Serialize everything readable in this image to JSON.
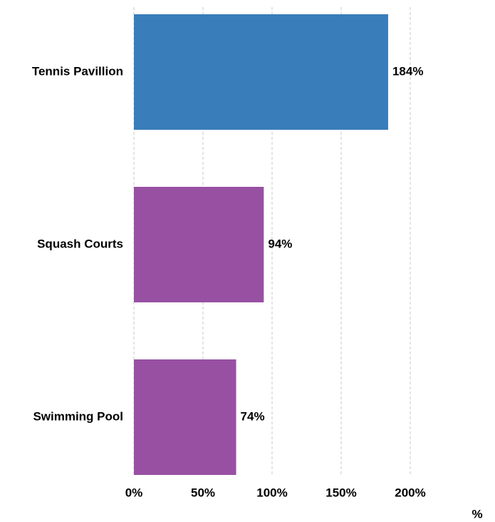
{
  "chart_data": {
    "type": "bar",
    "orientation": "horizontal",
    "categories": [
      "Tennis Pavillion",
      "Squash Courts",
      "Swimming Pool"
    ],
    "values": [
      184,
      94,
      74
    ],
    "value_labels": [
      "184%",
      "94%",
      "74%"
    ],
    "colors": [
      "#3a7dbb",
      "#9850a3",
      "#9850a3"
    ],
    "xlim": [
      0,
      200
    ],
    "xticks": [
      {
        "value": 0,
        "label": "0%"
      },
      {
        "value": 50,
        "label": "50%"
      },
      {
        "value": 100,
        "label": "100%"
      },
      {
        "value": 150,
        "label": "150%"
      },
      {
        "value": 200,
        "label": "200%"
      }
    ],
    "xlabel": "%",
    "grid": true
  }
}
